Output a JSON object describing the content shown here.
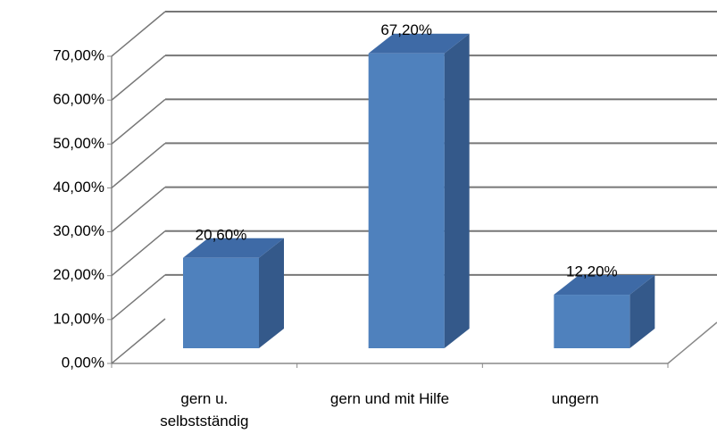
{
  "chart_data": {
    "type": "bar3d",
    "categories": [
      "gern u. selbstständig",
      "gern und mit Hilfe",
      "ungern"
    ],
    "values": [
      20.6,
      67.2,
      12.2
    ],
    "value_labels": [
      "20,60%",
      "67,20%",
      "12,20%"
    ],
    "color": "#4f81bd",
    "ylim": [
      0,
      70
    ],
    "yticks": [
      {
        "value": 0,
        "label": "0,00%"
      },
      {
        "value": 10,
        "label": "10,00%"
      },
      {
        "value": 20,
        "label": "20,00%"
      },
      {
        "value": 30,
        "label": "30,00%"
      },
      {
        "value": 40,
        "label": "40,00%"
      },
      {
        "value": 50,
        "label": "50,00%"
      },
      {
        "value": 60,
        "label": "60,00%"
      },
      {
        "value": 70,
        "label": "70,00%"
      }
    ],
    "grid": true
  }
}
